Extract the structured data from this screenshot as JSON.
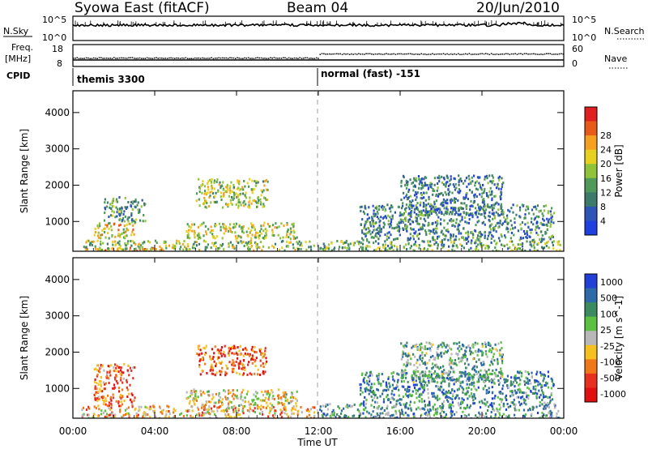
{
  "header": {
    "title": "Syowa East (fitACF)",
    "beam": "Beam 04",
    "date": "20/Jun/2010"
  },
  "strips": {
    "nsky_label": "N.Sky",
    "nsearch_label": "N.Search",
    "nsky_ticks": [
      "10^5",
      "10^0"
    ],
    "nsearch_ticks": [
      "10^5",
      "10^0"
    ],
    "freq_label_1": "Freq.",
    "freq_label_2": "[MHz]",
    "freq_ticks": [
      "18",
      "8"
    ],
    "nave_label": "Nave",
    "nave_ticks": [
      "60",
      "0"
    ],
    "cpid_label": "CPID",
    "cpid_segments": [
      {
        "label": "themis 3300",
        "start_hour": 0
      },
      {
        "label": "normal (fast) -151",
        "start_hour": 12
      }
    ]
  },
  "x_axis": {
    "label": "Time UT",
    "ticks": [
      "00:00",
      "04:00",
      "08:00",
      "12:00",
      "16:00",
      "20:00",
      "00:00"
    ]
  },
  "chart_data": [
    {
      "type": "heatmap",
      "name": "power",
      "ylabel": "Slant Range [km]",
      "yticks": [
        1000,
        2000,
        3000,
        4000
      ],
      "ylim": [
        180,
        4600
      ],
      "xlim": [
        0,
        24
      ],
      "colorbar_label": "Power [dB]",
      "colorbar_ticks": [
        "4",
        "8",
        "12",
        "16",
        "20",
        "24",
        "28"
      ],
      "colorbar_colors": [
        "#1f3fe0",
        "#2d55b8",
        "#3c7a6a",
        "#4f9a58",
        "#8fc43a",
        "#e8d020",
        "#f5a020",
        "#e85a18",
        "#e02020"
      ],
      "regions": [
        {
          "t": [
            0.4,
            4.5
          ],
          "r": [
            200,
            320
          ],
          "level": 0.75
        },
        {
          "t": [
            0.5,
            11.8
          ],
          "r": [
            230,
            500
          ],
          "level": 0.5
        },
        {
          "t": [
            1.0,
            3.0
          ],
          "r": [
            550,
            1000
          ],
          "level": 0.6
        },
        {
          "t": [
            1.5,
            3.5
          ],
          "r": [
            1000,
            1700
          ],
          "level": 0.35
        },
        {
          "t": [
            5.5,
            11.0
          ],
          "r": [
            550,
            1000
          ],
          "level": 0.55
        },
        {
          "t": [
            6.0,
            9.5
          ],
          "r": [
            1400,
            2200
          ],
          "level": 0.5
        },
        {
          "t": [
            12.0,
            23.8
          ],
          "r": [
            200,
            500
          ],
          "level": 0.4
        },
        {
          "t": [
            14.0,
            23.5
          ],
          "r": [
            500,
            1500
          ],
          "level": 0.3
        },
        {
          "t": [
            16.0,
            21.0
          ],
          "r": [
            1200,
            2300
          ],
          "level": 0.25
        }
      ]
    },
    {
      "type": "heatmap",
      "name": "velocity",
      "ylabel": "Slant Range [km]",
      "yticks": [
        1000,
        2000,
        3000,
        4000
      ],
      "ylim": [
        180,
        4600
      ],
      "xlim": [
        0,
        24
      ],
      "colorbar_label": "Velocity [m s^-1]",
      "colorbar_ticks": [
        "1000",
        "500",
        "100",
        "25",
        "-25",
        "-100",
        "-500",
        "-1000"
      ],
      "colorbar_colors": [
        "#2040d8",
        "#2e6aa8",
        "#3c8a60",
        "#5cc040",
        "#b8b8b8",
        "#f5c020",
        "#f07818",
        "#e83020",
        "#e01010"
      ],
      "regions": [
        {
          "t": [
            0.4,
            11.8
          ],
          "r": [
            200,
            550
          ],
          "level": 0.62
        },
        {
          "t": [
            1.0,
            3.0
          ],
          "r": [
            550,
            1700
          ],
          "level": 0.75
        },
        {
          "t": [
            5.5,
            11.0
          ],
          "r": [
            550,
            1000
          ],
          "level": 0.55
        },
        {
          "t": [
            6.0,
            9.5
          ],
          "r": [
            1400,
            2200
          ],
          "level": 0.8
        },
        {
          "t": [
            12.0,
            23.8
          ],
          "r": [
            200,
            600
          ],
          "level": 0.3
        },
        {
          "t": [
            14.0,
            23.5
          ],
          "r": [
            600,
            1500
          ],
          "level": 0.25
        },
        {
          "t": [
            16.0,
            21.0
          ],
          "r": [
            1200,
            2300
          ],
          "level": 0.35
        }
      ]
    }
  ]
}
